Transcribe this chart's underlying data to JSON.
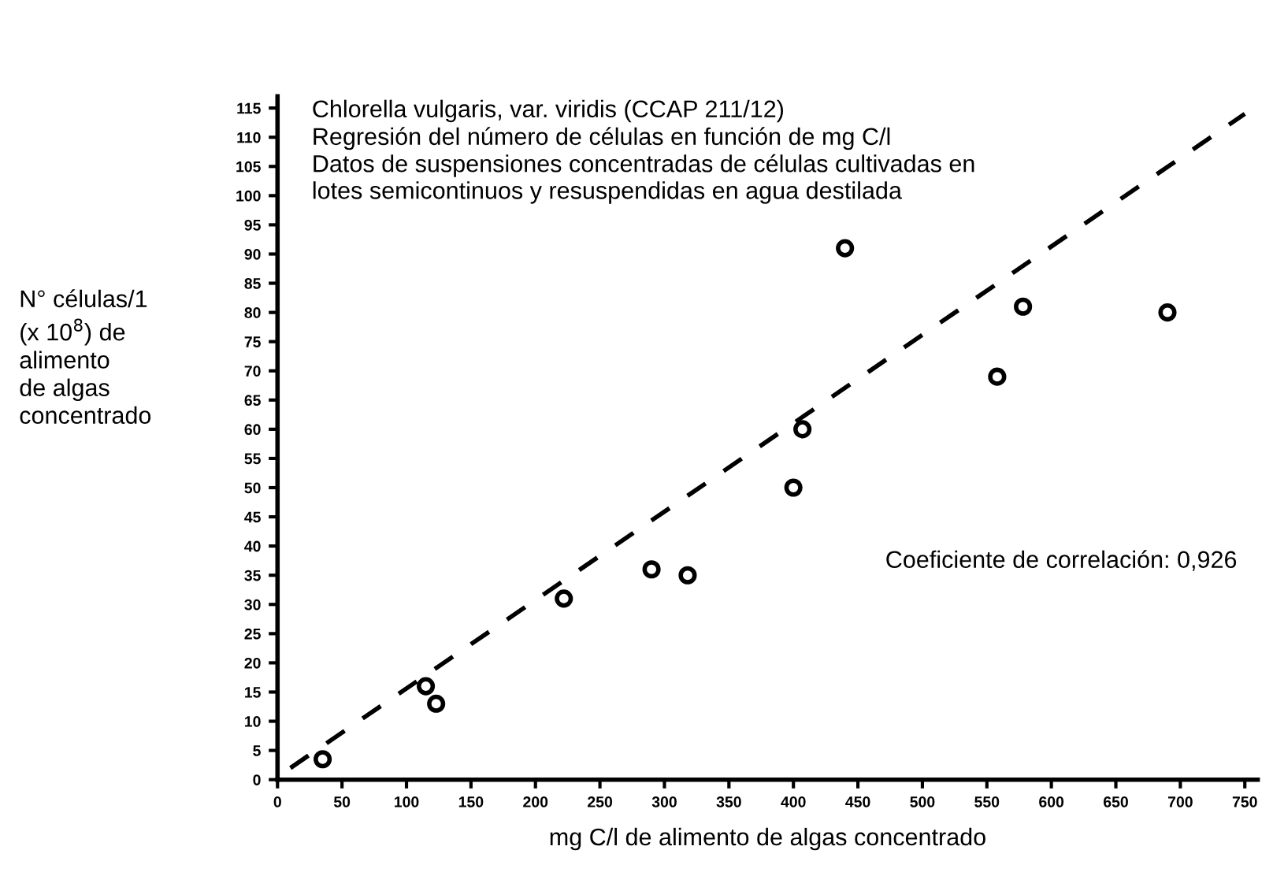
{
  "chart_data": {
    "type": "scatter",
    "title": "Chlorella vulgaris, var. viridis (CCAP 211/12)",
    "subtitle": "Regresión del número de células en función de mg C/l\nDatos de suspensiones concentradas de células cultivadas en\nlotes semicontinuos y resuspendidas en agua destilada",
    "xlabel": "mg C/l de alimento de algas concentrado",
    "ylabel": "N° células/1\n(x 10$^{8}$) de\nalimento\nde algas\nconcentrado",
    "annotations": [
      "Coeficiente de correlación: 0,926"
    ],
    "series": [
      {
        "color": "#000000",
        "marker": "circle",
        "x": [
          35,
          115,
          123,
          222,
          290,
          318,
          400,
          407,
          440,
          558,
          578,
          690
        ],
        "values": [
          3.5,
          16,
          13,
          31,
          36,
          35,
          50,
          60,
          91,
          69,
          81,
          80
        ]
      },
      {
        "type": "line",
        "color": "#000000",
        "marker": "none",
        "line_style": "dashed",
        "x": [
          10,
          750
        ],
        "values": [
          2,
          114
        ]
      }
    ],
    "xlim": [
      0,
      760
    ],
    "ylim": [
      0,
      117
    ],
    "xticks": [
      0,
      50,
      100,
      150,
      200,
      250,
      300,
      350,
      400,
      450,
      500,
      550,
      600,
      650,
      700,
      750
    ],
    "yticks": [
      0,
      5,
      10,
      15,
      20,
      25,
      30,
      35,
      40,
      45,
      50,
      55,
      60,
      65,
      70,
      75,
      80,
      85,
      90,
      95,
      100,
      105,
      110,
      115
    ],
    "grid": false,
    "legend": false
  }
}
